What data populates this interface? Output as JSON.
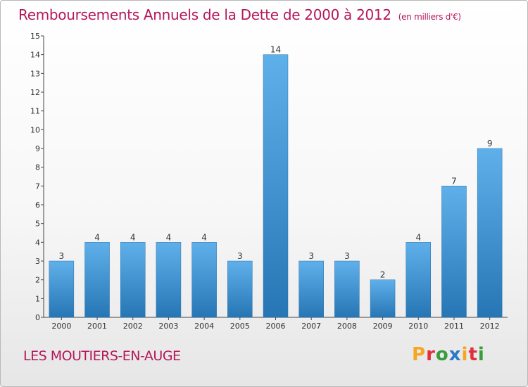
{
  "header": {
    "title": "Remboursements Annuels de la Dette de 2000 à 2012",
    "subtitle": "(en milliers d'€)"
  },
  "footer": {
    "town": "LES MOUTIERS-EN-AUGE",
    "logo": "Proxiti"
  },
  "colors": {
    "title": "#b5175b",
    "bar_light": "#5fb0ea",
    "bar_dark": "#2676b5",
    "logo": [
      "#f5a623",
      "#e0303b",
      "#3b9a3b",
      "#2a78c8",
      "#f5a623",
      "#e0303b",
      "#3b9a3b"
    ]
  },
  "chart_data": {
    "type": "bar",
    "categories": [
      "2000",
      "2001",
      "2002",
      "2003",
      "2004",
      "2005",
      "2006",
      "2007",
      "2008",
      "2009",
      "2010",
      "2011",
      "2012"
    ],
    "values": [
      3,
      4,
      4,
      4,
      4,
      3,
      14,
      3,
      3,
      2,
      4,
      7,
      9
    ],
    "title": "Remboursements Annuels de la Dette de 2000 à 2012",
    "xlabel": "",
    "ylabel": "",
    "ylim": [
      0,
      15
    ],
    "yticks": [
      0,
      1,
      2,
      3,
      4,
      5,
      6,
      7,
      8,
      9,
      10,
      11,
      12,
      13,
      14,
      15
    ],
    "grid": false,
    "legend": "none"
  }
}
